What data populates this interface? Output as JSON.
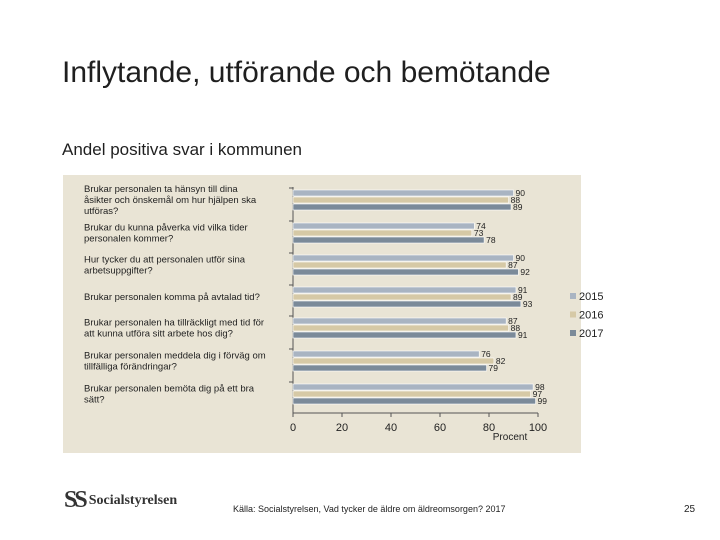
{
  "slide": {
    "title": "Inflytande, utförande och bemötande",
    "subtitle": "Andel positiva svar i kommunen",
    "source": "Källa: Socialstyrelsen, Vad tycker de äldre om äldreomsorgen? 2017",
    "page_number": "25",
    "logo_text": "Socialstyrelsen",
    "logo_mark": "SS"
  },
  "chart_data": {
    "type": "bar",
    "orientation": "horizontal",
    "categories": [
      [
        "Brukar personalen ta hänsyn till dina",
        "åsikter och önskemål om hur hjälpen ska",
        "utföras?"
      ],
      [
        "Brukar du kunna påverka vid vilka tider",
        "personalen kommer?"
      ],
      [
        "Hur tycker du att personalen utför sina",
        "arbetsuppgifter?"
      ],
      [
        "Brukar personalen komma på avtalad tid?"
      ],
      [
        "Brukar personalen ha tillräckligt med tid för",
        "att kunna utföra sitt arbete hos dig?"
      ],
      [
        "Brukar personalen meddela dig i förväg om",
        "tillfälliga förändringar?"
      ],
      [
        "Brukar personalen bemöta dig på ett bra",
        "sätt?"
      ]
    ],
    "series": [
      {
        "name": "2015",
        "color": "#a9b4c2",
        "values": [
          90,
          74,
          90,
          91,
          87,
          76,
          98
        ]
      },
      {
        "name": "2016",
        "color": "#d6c9a6",
        "values": [
          88,
          73,
          87,
          89,
          88,
          82,
          97
        ]
      },
      {
        "name": "2017",
        "color": "#7b8a99",
        "values": [
          89,
          78,
          92,
          93,
          91,
          79,
          99
        ]
      }
    ],
    "xlim": [
      0,
      100
    ],
    "xticks": [
      0,
      20,
      40,
      60,
      80,
      100
    ],
    "xlabel": "Procent",
    "legend_position": "right"
  }
}
